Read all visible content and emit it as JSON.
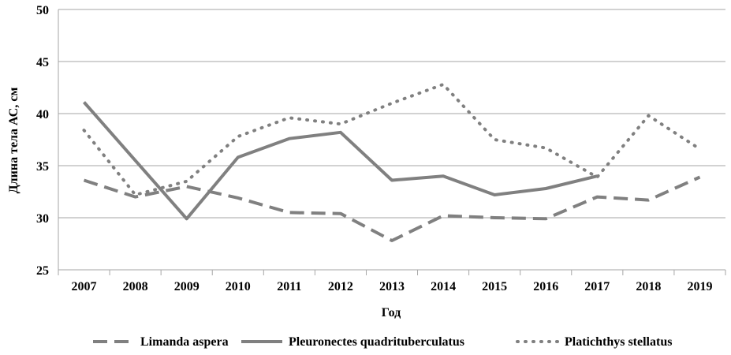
{
  "chart_data": {
    "type": "line",
    "xlabel": "Год",
    "ylabel": "Длина тела АС, см",
    "ylim": [
      25,
      50
    ],
    "yticks": [
      25,
      30,
      35,
      40,
      45,
      50
    ],
    "categories": [
      "2007",
      "2008",
      "2009",
      "2010",
      "2011",
      "2012",
      "2013",
      "2014",
      "2015",
      "2016",
      "2017",
      "2018",
      "2019"
    ],
    "grid": "horizontal",
    "legend_position": "bottom",
    "series": [
      {
        "name": "Limanda aspera",
        "style": "dashed",
        "color": "#808080",
        "values": [
          33.6,
          32.0,
          33.0,
          31.9,
          30.5,
          30.4,
          27.8,
          30.2,
          30.0,
          29.9,
          32.0,
          31.7,
          33.9
        ]
      },
      {
        "name": "Pleuronectes quadrituberculatus",
        "style": "solid",
        "color": "#808080",
        "values": [
          41.1,
          35.5,
          29.9,
          35.8,
          37.6,
          38.2,
          33.6,
          34.0,
          32.2,
          32.8,
          34.0,
          null,
          null
        ]
      },
      {
        "name": "Platichthys stellatus",
        "style": "dotted",
        "color": "#808080",
        "values": [
          38.4,
          32.2,
          33.5,
          37.8,
          39.6,
          39.0,
          41.0,
          42.8,
          37.5,
          36.7,
          33.9,
          39.8,
          36.6
        ]
      }
    ]
  }
}
